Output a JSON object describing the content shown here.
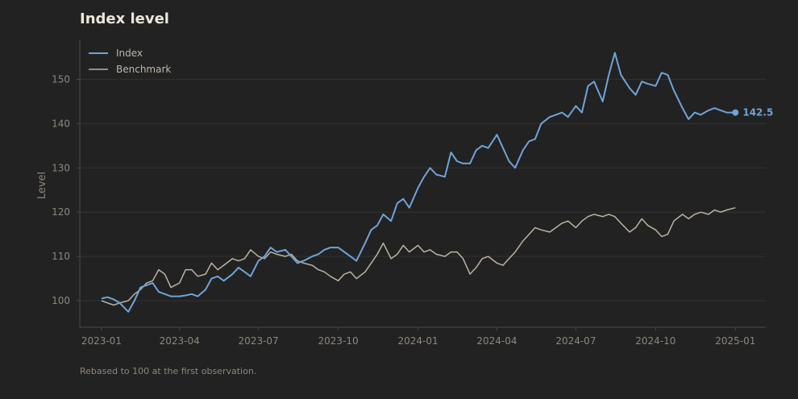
{
  "page": {
    "title": "Index level",
    "footnote": "Rebased to 100 at the first observation."
  },
  "colors": {
    "background": "#222222",
    "grid": "#333333",
    "axis": "#4a4a4a",
    "index": "#6fa3d8",
    "benchmark": "#bcb3a1",
    "text": "#8e877c",
    "title": "#ece6da"
  },
  "chart_data": {
    "type": "line",
    "title": "Index level",
    "xlabel": "",
    "ylabel": "Level",
    "ylim": [
      94,
      159
    ],
    "xlim": [
      "2022-12-07",
      "2025-02-05"
    ],
    "yticks": [
      100,
      110,
      120,
      130,
      140,
      150
    ],
    "xticks": [
      "2023-01",
      "2023-04",
      "2023-07",
      "2023-10",
      "2024-01",
      "2024-04",
      "2024-07",
      "2024-10",
      "2025-01"
    ],
    "grid": true,
    "legend_position": "top-left",
    "series": [
      {
        "name": "Index",
        "color": "#6fa3d8",
        "end_label": "142.5",
        "points": [
          [
            "2023-01-01",
            100.5
          ],
          [
            "2023-01-08",
            100.8
          ],
          [
            "2023-01-15",
            100.3
          ],
          [
            "2023-01-22",
            99.5
          ],
          [
            "2023-02-01",
            97.5
          ],
          [
            "2023-02-08",
            100.0
          ],
          [
            "2023-02-15",
            103.0
          ],
          [
            "2023-02-22",
            103.5
          ],
          [
            "2023-03-01",
            104.0
          ],
          [
            "2023-03-08",
            102.0
          ],
          [
            "2023-03-15",
            101.5
          ],
          [
            "2023-03-22",
            101.0
          ],
          [
            "2023-04-01",
            101.0
          ],
          [
            "2023-04-08",
            101.2
          ],
          [
            "2023-04-15",
            101.5
          ],
          [
            "2023-04-22",
            101.0
          ],
          [
            "2023-05-01",
            102.5
          ],
          [
            "2023-05-08",
            105.0
          ],
          [
            "2023-05-15",
            105.5
          ],
          [
            "2023-05-22",
            104.5
          ],
          [
            "2023-06-01",
            106.0
          ],
          [
            "2023-06-08",
            107.5
          ],
          [
            "2023-06-15",
            106.5
          ],
          [
            "2023-06-22",
            105.5
          ],
          [
            "2023-07-01",
            109.0
          ],
          [
            "2023-07-08",
            110.0
          ],
          [
            "2023-07-15",
            112.0
          ],
          [
            "2023-07-22",
            111.0
          ],
          [
            "2023-08-01",
            111.5
          ],
          [
            "2023-08-08",
            110.0
          ],
          [
            "2023-08-15",
            108.5
          ],
          [
            "2023-08-22",
            109.0
          ],
          [
            "2023-09-01",
            110.0
          ],
          [
            "2023-09-08",
            110.5
          ],
          [
            "2023-09-15",
            111.5
          ],
          [
            "2023-09-22",
            112.0
          ],
          [
            "2023-10-01",
            112.0
          ],
          [
            "2023-10-08",
            111.0
          ],
          [
            "2023-10-15",
            110.0
          ],
          [
            "2023-10-22",
            109.0
          ],
          [
            "2023-11-01",
            113.0
          ],
          [
            "2023-11-08",
            116.0
          ],
          [
            "2023-11-15",
            117.0
          ],
          [
            "2023-11-22",
            119.5
          ],
          [
            "2023-12-01",
            118.0
          ],
          [
            "2023-12-08",
            122.0
          ],
          [
            "2023-12-15",
            123.0
          ],
          [
            "2023-12-22",
            121.0
          ],
          [
            "2024-01-01",
            125.5
          ],
          [
            "2024-01-08",
            128.0
          ],
          [
            "2024-01-15",
            130.0
          ],
          [
            "2024-01-22",
            128.5
          ],
          [
            "2024-02-01",
            128.0
          ],
          [
            "2024-02-08",
            133.5
          ],
          [
            "2024-02-15",
            131.5
          ],
          [
            "2024-02-22",
            131.0
          ],
          [
            "2024-03-01",
            131.0
          ],
          [
            "2024-03-08",
            134.0
          ],
          [
            "2024-03-15",
            135.0
          ],
          [
            "2024-03-22",
            134.5
          ],
          [
            "2024-04-01",
            137.5
          ],
          [
            "2024-04-08",
            134.5
          ],
          [
            "2024-04-15",
            131.5
          ],
          [
            "2024-04-22",
            130.0
          ],
          [
            "2024-05-01",
            134.0
          ],
          [
            "2024-05-08",
            136.0
          ],
          [
            "2024-05-15",
            136.5
          ],
          [
            "2024-05-22",
            140.0
          ],
          [
            "2024-06-01",
            141.5
          ],
          [
            "2024-06-08",
            142.0
          ],
          [
            "2024-06-15",
            142.5
          ],
          [
            "2024-06-22",
            141.5
          ],
          [
            "2024-07-01",
            144.0
          ],
          [
            "2024-07-08",
            142.5
          ],
          [
            "2024-07-15",
            148.5
          ],
          [
            "2024-07-22",
            149.5
          ],
          [
            "2024-08-01",
            145.0
          ],
          [
            "2024-08-08",
            151.0
          ],
          [
            "2024-08-15",
            156.0
          ],
          [
            "2024-08-22",
            151.0
          ],
          [
            "2024-09-01",
            148.0
          ],
          [
            "2024-09-08",
            146.5
          ],
          [
            "2024-09-15",
            149.5
          ],
          [
            "2024-09-22",
            149.0
          ],
          [
            "2024-10-01",
            148.5
          ],
          [
            "2024-10-08",
            151.5
          ],
          [
            "2024-10-15",
            151.0
          ],
          [
            "2024-10-22",
            147.5
          ],
          [
            "2024-11-01",
            143.5
          ],
          [
            "2024-11-08",
            141.0
          ],
          [
            "2024-11-15",
            142.5
          ],
          [
            "2024-11-22",
            142.0
          ],
          [
            "2024-12-01",
            143.0
          ],
          [
            "2024-12-08",
            143.5
          ],
          [
            "2024-12-15",
            143.0
          ],
          [
            "2024-12-22",
            142.5
          ],
          [
            "2025-01-01",
            142.5
          ]
        ]
      },
      {
        "name": "Benchmark",
        "color": "#bcb3a1",
        "points": [
          [
            "2023-01-01",
            100.0
          ],
          [
            "2023-01-08",
            99.5
          ],
          [
            "2023-01-15",
            99.0
          ],
          [
            "2023-01-22",
            99.5
          ],
          [
            "2023-02-01",
            100.0
          ],
          [
            "2023-02-08",
            101.5
          ],
          [
            "2023-02-15",
            102.5
          ],
          [
            "2023-02-22",
            104.0
          ],
          [
            "2023-03-01",
            104.5
          ],
          [
            "2023-03-08",
            107.0
          ],
          [
            "2023-03-15",
            106.0
          ],
          [
            "2023-03-22",
            103.0
          ],
          [
            "2023-04-01",
            104.0
          ],
          [
            "2023-04-08",
            107.0
          ],
          [
            "2023-04-15",
            107.0
          ],
          [
            "2023-04-22",
            105.5
          ],
          [
            "2023-05-01",
            106.0
          ],
          [
            "2023-05-08",
            108.5
          ],
          [
            "2023-05-15",
            107.0
          ],
          [
            "2023-05-22",
            108.0
          ],
          [
            "2023-06-01",
            109.5
          ],
          [
            "2023-06-08",
            109.0
          ],
          [
            "2023-06-15",
            109.5
          ],
          [
            "2023-06-22",
            111.5
          ],
          [
            "2023-07-01",
            110.0
          ],
          [
            "2023-07-08",
            109.5
          ],
          [
            "2023-07-15",
            111.0
          ],
          [
            "2023-07-22",
            110.5
          ],
          [
            "2023-08-01",
            110.0
          ],
          [
            "2023-08-08",
            110.5
          ],
          [
            "2023-08-15",
            109.0
          ],
          [
            "2023-08-22",
            108.5
          ],
          [
            "2023-09-01",
            108.0
          ],
          [
            "2023-09-08",
            107.0
          ],
          [
            "2023-09-15",
            106.5
          ],
          [
            "2023-09-22",
            105.5
          ],
          [
            "2023-10-01",
            104.5
          ],
          [
            "2023-10-08",
            106.0
          ],
          [
            "2023-10-15",
            106.5
          ],
          [
            "2023-10-22",
            105.0
          ],
          [
            "2023-11-01",
            106.5
          ],
          [
            "2023-11-08",
            108.5
          ],
          [
            "2023-11-15",
            110.5
          ],
          [
            "2023-11-22",
            113.0
          ],
          [
            "2023-12-01",
            109.5
          ],
          [
            "2023-12-08",
            110.5
          ],
          [
            "2023-12-15",
            112.5
          ],
          [
            "2023-12-22",
            111.0
          ],
          [
            "2024-01-01",
            112.5
          ],
          [
            "2024-01-08",
            111.0
          ],
          [
            "2024-01-15",
            111.5
          ],
          [
            "2024-01-22",
            110.5
          ],
          [
            "2024-02-01",
            110.0
          ],
          [
            "2024-02-08",
            111.0
          ],
          [
            "2024-02-15",
            111.0
          ],
          [
            "2024-02-22",
            109.5
          ],
          [
            "2024-03-01",
            106.0
          ],
          [
            "2024-03-08",
            107.5
          ],
          [
            "2024-03-15",
            109.5
          ],
          [
            "2024-03-22",
            110.0
          ],
          [
            "2024-04-01",
            108.5
          ],
          [
            "2024-04-08",
            108.0
          ],
          [
            "2024-04-15",
            109.5
          ],
          [
            "2024-04-22",
            111.0
          ],
          [
            "2024-05-01",
            113.5
          ],
          [
            "2024-05-08",
            115.0
          ],
          [
            "2024-05-15",
            116.5
          ],
          [
            "2024-05-22",
            116.0
          ],
          [
            "2024-06-01",
            115.5
          ],
          [
            "2024-06-08",
            116.5
          ],
          [
            "2024-06-15",
            117.5
          ],
          [
            "2024-06-22",
            118.0
          ],
          [
            "2024-07-01",
            116.5
          ],
          [
            "2024-07-08",
            118.0
          ],
          [
            "2024-07-15",
            119.0
          ],
          [
            "2024-07-22",
            119.5
          ],
          [
            "2024-08-01",
            119.0
          ],
          [
            "2024-08-08",
            119.5
          ],
          [
            "2024-08-15",
            119.0
          ],
          [
            "2024-08-22",
            117.5
          ],
          [
            "2024-09-01",
            115.5
          ],
          [
            "2024-09-08",
            116.5
          ],
          [
            "2024-09-15",
            118.5
          ],
          [
            "2024-09-22",
            117.0
          ],
          [
            "2024-10-01",
            116.0
          ],
          [
            "2024-10-08",
            114.5
          ],
          [
            "2024-10-15",
            115.0
          ],
          [
            "2024-10-22",
            118.0
          ],
          [
            "2024-11-01",
            119.5
          ],
          [
            "2024-11-08",
            118.5
          ],
          [
            "2024-11-15",
            119.5
          ],
          [
            "2024-11-22",
            120.0
          ],
          [
            "2024-12-01",
            119.5
          ],
          [
            "2024-12-08",
            120.5
          ],
          [
            "2024-12-15",
            120.0
          ],
          [
            "2024-12-22",
            120.5
          ],
          [
            "2025-01-01",
            121.0
          ]
        ]
      }
    ]
  }
}
